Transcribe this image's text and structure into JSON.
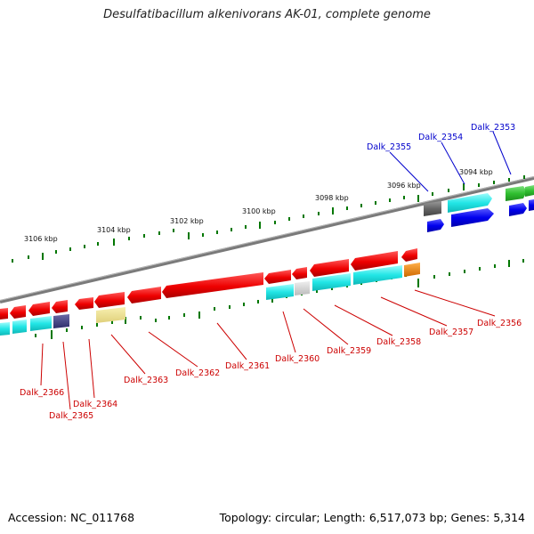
{
  "title": "Desulfatibacillum alkenivorans AK-01, complete genome",
  "footer": {
    "accession": "Accession: NC_011768",
    "summary": "Topology: circular; Length: 6,517,073 bp; Genes: 5,314"
  },
  "colors": {
    "forward_label": "#0000cc",
    "reverse_label": "#cc0000",
    "backbone": "#808080",
    "tick": "#007700"
  },
  "scale_labels": [
    "3106 kbp",
    "3104 kbp",
    "3102 kbp",
    "3100 kbp",
    "3098 kbp",
    "3096 kbp",
    "3094 kbp"
  ],
  "forward_gene_labels": [
    "Dalk_2355",
    "Dalk_2354",
    "Dalk_2353"
  ],
  "reverse_gene_labels": [
    "Dalk_2366",
    "Dalk_2365",
    "Dalk_2364",
    "Dalk_2363",
    "Dalk_2362",
    "Dalk_2361",
    "Dalk_2360",
    "Dalk_2359",
    "Dalk_2358",
    "Dalk_2357",
    "Dalk_2356"
  ]
}
